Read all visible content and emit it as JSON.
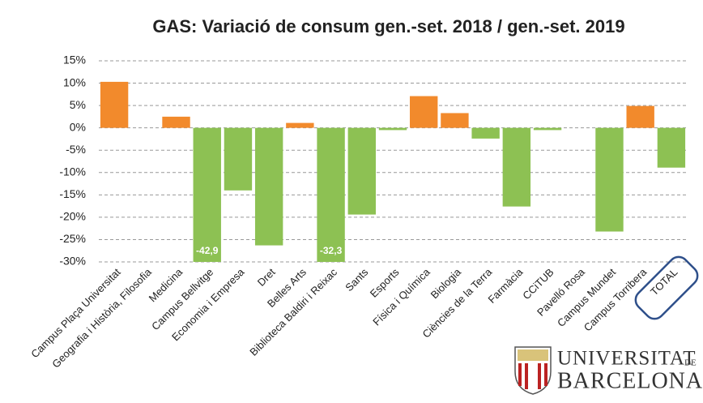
{
  "chart_data": {
    "type": "bar",
    "title": "GAS: Variació de consum gen.-set. 2018 / gen.-set. 2019",
    "categories": [
      "Campus Plaça Universitat",
      "Geografia i Història, Filosofia",
      "Medicina",
      "Campus Bellvitge",
      "Economia i Empresa",
      "Dret",
      "Belles Arts",
      "Biblioteca Baldiri i Reixac",
      "Sants",
      "Esports",
      "Física i Química",
      "Biologia",
      "Ciències de la Terra",
      "Farmàcia",
      "CCiTUB",
      "Pavelló Rosa",
      "Campus Mundet",
      "Campus Torribera",
      "TOTAL"
    ],
    "values": [
      10.3,
      null,
      2.5,
      -42.9,
      -14.0,
      -26.3,
      1.1,
      -32.3,
      -19.4,
      -0.5,
      7.1,
      3.3,
      -2.4,
      -17.6,
      -0.5,
      null,
      -23.2,
      4.9,
      -8.9
    ],
    "value_labels": [
      null,
      null,
      null,
      "-42,9",
      null,
      null,
      null,
      "-32,3",
      null,
      null,
      null,
      null,
      null,
      null,
      null,
      null,
      null,
      null,
      null
    ],
    "positive_color": "#f28a2c",
    "negative_color": "#8dc153",
    "ylim": [
      -30,
      15
    ],
    "yticks": [
      {
        "value": -30,
        "label": "-30%"
      },
      {
        "value": -25,
        "label": "-25%"
      },
      {
        "value": -20,
        "label": "-20%"
      },
      {
        "value": -15,
        "label": "-15%"
      },
      {
        "value": -10,
        "label": "-10%"
      },
      {
        "value": -5,
        "label": "-5%"
      },
      {
        "value": 0,
        "label": "0%"
      },
      {
        "value": 5,
        "label": "5%"
      },
      {
        "value": 10,
        "label": "10%"
      },
      {
        "value": 15,
        "label": "15%"
      }
    ],
    "grid": true
  },
  "logo": {
    "name": "UNIVERSITAT",
    "suffix": "DE",
    "city": "BARCELONA"
  }
}
